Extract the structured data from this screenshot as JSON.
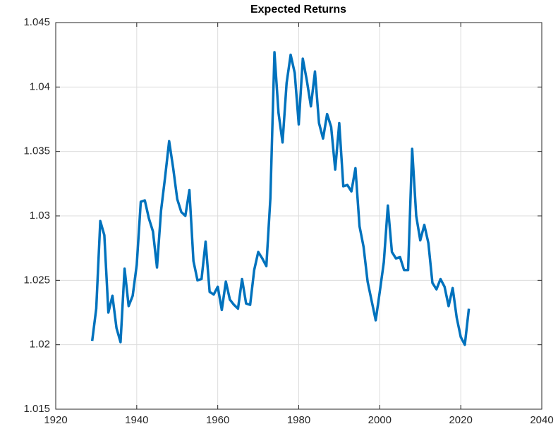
{
  "chart_data": {
    "type": "line",
    "title": "Expected Returns",
    "x": [
      1929,
      1930,
      1931,
      1932,
      1933,
      1934,
      1935,
      1936,
      1937,
      1938,
      1939,
      1940,
      1941,
      1942,
      1943,
      1944,
      1945,
      1946,
      1947,
      1948,
      1949,
      1950,
      1951,
      1952,
      1953,
      1954,
      1955,
      1956,
      1957,
      1958,
      1959,
      1960,
      1961,
      1962,
      1963,
      1964,
      1965,
      1966,
      1967,
      1968,
      1969,
      1970,
      1971,
      1972,
      1973,
      1974,
      1975,
      1976,
      1977,
      1978,
      1979,
      1980,
      1981,
      1982,
      1983,
      1984,
      1985,
      1986,
      1987,
      1988,
      1989,
      1990,
      1991,
      1992,
      1993,
      1994,
      1995,
      1996,
      1997,
      1998,
      1999,
      2000,
      2001,
      2002,
      2003,
      2004,
      2005,
      2006,
      2007,
      2008,
      2009,
      2010,
      2011,
      2012,
      2013,
      2014,
      2015,
      2016,
      2017,
      2018,
      2019,
      2020,
      2021,
      2022
    ],
    "values": [
      1.0203,
      1.0228,
      1.0296,
      1.0285,
      1.0225,
      1.0238,
      1.0213,
      1.0202,
      1.0259,
      1.023,
      1.0238,
      1.0262,
      1.0311,
      1.0312,
      1.0298,
      1.0288,
      1.026,
      1.0304,
      1.033,
      1.0358,
      1.0337,
      1.0313,
      1.0303,
      1.03,
      1.032,
      1.0265,
      1.025,
      1.0251,
      1.028,
      1.0241,
      1.0239,
      1.0245,
      1.0227,
      1.0249,
      1.0235,
      1.0231,
      1.0228,
      1.0251,
      1.0232,
      1.0231,
      1.0258,
      1.0272,
      1.0267,
      1.0261,
      1.0314,
      1.0427,
      1.038,
      1.0357,
      1.0403,
      1.0425,
      1.0411,
      1.0371,
      1.0422,
      1.0405,
      1.0385,
      1.0412,
      1.0372,
      1.036,
      1.0379,
      1.0369,
      1.0336,
      1.0372,
      1.0323,
      1.0324,
      1.0319,
      1.0337,
      1.0292,
      1.0276,
      1.0249,
      1.0234,
      1.0219,
      1.0241,
      1.0264,
      1.0308,
      1.0272,
      1.0267,
      1.0268,
      1.0258,
      1.0258,
      1.0352,
      1.03,
      1.0281,
      1.0293,
      1.0279,
      1.0248,
      1.0243,
      1.0251,
      1.0245,
      1.023,
      1.0244,
      1.0221,
      1.0206,
      1.02,
      1.0228
    ],
    "color": "#0072bd",
    "xlim": [
      1920,
      2040
    ],
    "xticks": [
      1920,
      1940,
      1960,
      1980,
      2000,
      2020,
      2040
    ],
    "ylim": [
      1.015,
      1.045
    ],
    "yticks": [
      1.015,
      1.02,
      1.025,
      1.03,
      1.035,
      1.04,
      1.045
    ],
    "grid": true
  }
}
